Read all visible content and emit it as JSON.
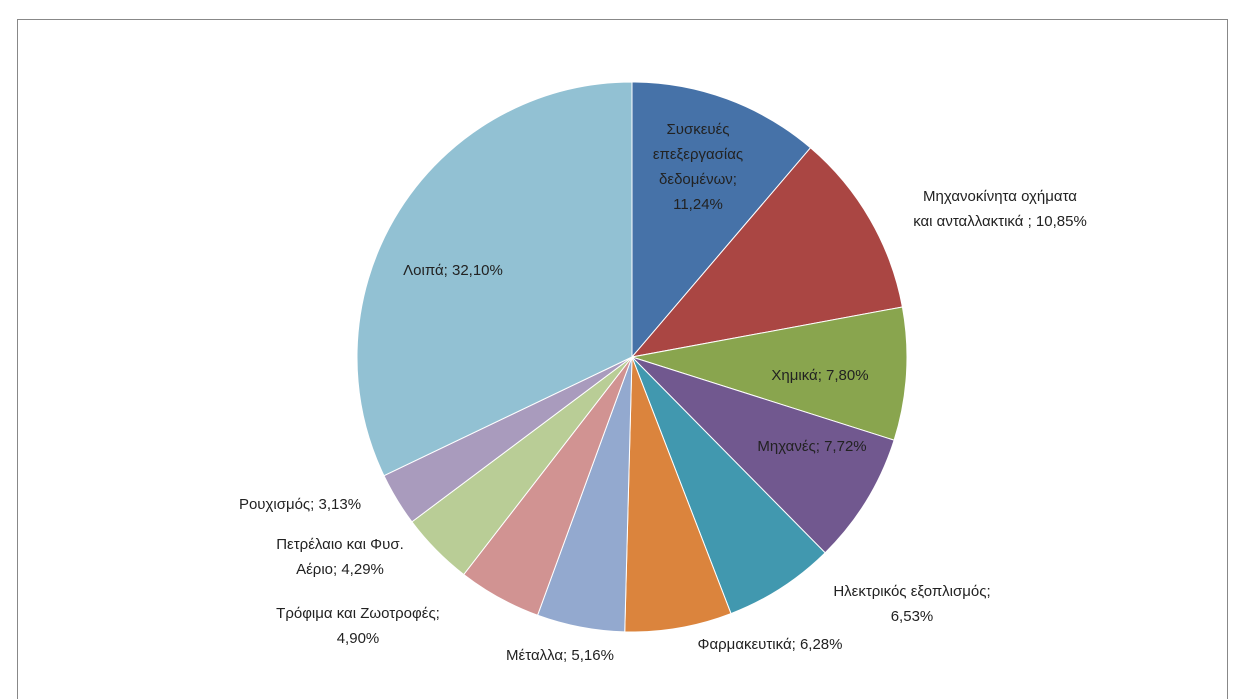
{
  "chart_data": {
    "type": "pie",
    "values": [
      11.24,
      10.85,
      7.8,
      7.72,
      6.53,
      6.28,
      5.16,
      4.9,
      4.29,
      3.13,
      32.1
    ],
    "value_labels": [
      [
        "Συσκευές",
        "επεξεργασίας",
        "δεδομένων;",
        "11,24%"
      ],
      [
        "Μηχανοκίνητα οχήματα",
        "και ανταλλακτικά ; 10,85%"
      ],
      [
        "Χημικά; 7,80%"
      ],
      [
        "Μηχανές; 7,72%"
      ],
      [
        "Ηλεκτρικός εξοπλισμός;",
        "6,53%"
      ],
      [
        "Φαρμακευτικά; 6,28%"
      ],
      [
        "Μέταλλα; 5,16%"
      ],
      [
        "Τρόφιμα και Ζωοτροφές;",
        "4,90%"
      ],
      [
        "Πετρέλαιο και Φυσ.",
        "Αέριο; 4,29%"
      ],
      [
        "Ρουχισμός; 3,13%"
      ],
      [
        "Λοιπά; 32,10%"
      ]
    ],
    "colors": [
      "#4672a8",
      "#aa4643",
      "#89a54e",
      "#71588f",
      "#4198af",
      "#db843d",
      "#93a9cf",
      "#d19392",
      "#b9cd96",
      "#a99bbd",
      "#92c1d3"
    ]
  }
}
